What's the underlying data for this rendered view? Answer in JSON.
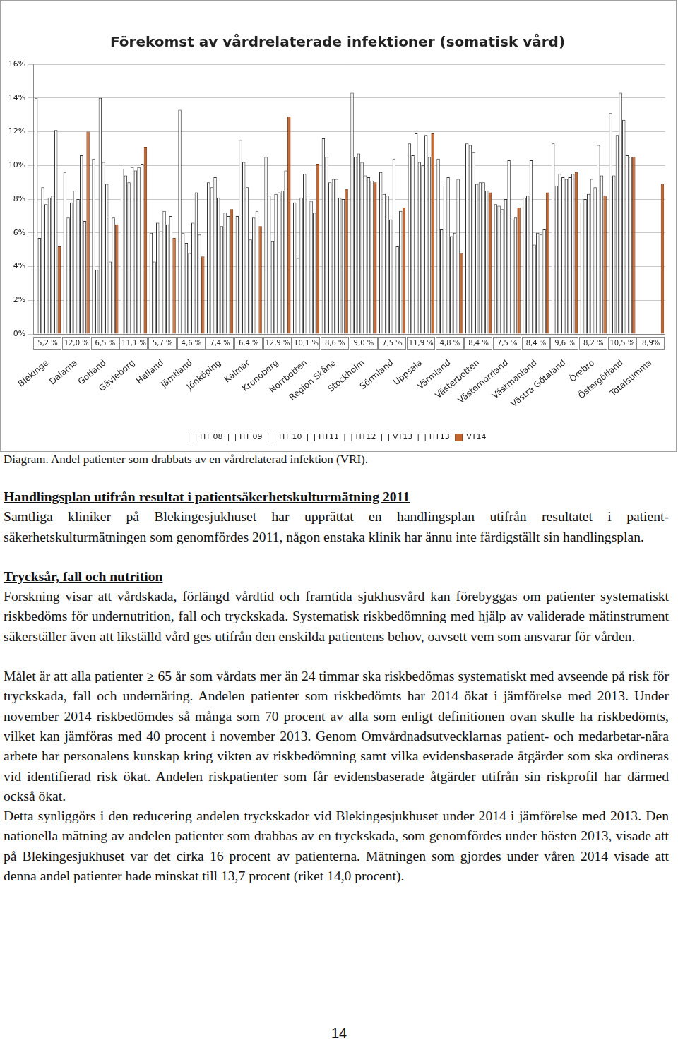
{
  "chart_data": {
    "type": "bar",
    "title": "Förekomst av vårdrelaterade infektioner (somatisk vård)",
    "categories": [
      "Blekinge",
      "Dalarna",
      "Gotland",
      "Gävleborg",
      "Halland",
      "Jämtland",
      "Jönköping",
      "Kalmar",
      "Kronoberg",
      "Norrbotten",
      "Region Skåne",
      "Stockholm",
      "Sörmland",
      "Uppsala",
      "Värmland",
      "Västerbotten",
      "Västernorrland",
      "Västmanland",
      "Västra Götaland",
      "Örebro",
      "Östergötland",
      "Totalsumma"
    ],
    "series": [
      {
        "name": "HT 08",
        "color": "#ffffff",
        "values": [
          14.0,
          9.6,
          10.4,
          9.8,
          6.0,
          13.3,
          9.0,
          7.0,
          10.5,
          7.8,
          11.6,
          14.3,
          9.6,
          11.3,
          10.4,
          11.3,
          7.7,
          8.1,
          11.3,
          7.8,
          13.1,
          null
        ]
      },
      {
        "name": "HT 09",
        "color": "#ffffff",
        "values": [
          5.7,
          6.9,
          3.8,
          9.4,
          4.3,
          6.0,
          8.7,
          11.5,
          8.2,
          4.5,
          10.5,
          10.5,
          8.3,
          10.6,
          6.2,
          11.2,
          7.6,
          8.2,
          8.8,
          8.0,
          9.4,
          null
        ]
      },
      {
        "name": "HT 10",
        "color": "#ffffff",
        "values": [
          8.7,
          7.8,
          14.0,
          9.0,
          6.6,
          5.4,
          9.3,
          10.2,
          5.5,
          8.1,
          9.0,
          10.7,
          8.2,
          11.9,
          8.8,
          10.8,
          7.4,
          10.3,
          9.5,
          8.3,
          11.8,
          null
        ]
      },
      {
        "name": "HT11",
        "color": "#ffffff",
        "values": [
          7.7,
          8.5,
          10.2,
          9.9,
          6.1,
          4.8,
          8.1,
          8.7,
          8.3,
          9.5,
          9.2,
          10.2,
          6.8,
          10.2,
          9.3,
          8.9,
          8.0,
          5.3,
          9.3,
          9.2,
          14.3,
          null
        ]
      },
      {
        "name": "HT12",
        "color": "#ffffff",
        "values": [
          8.1,
          8.0,
          8.9,
          9.7,
          7.3,
          6.6,
          6.4,
          5.6,
          8.4,
          8.2,
          9.2,
          9.4,
          10.4,
          10.0,
          5.8,
          9.0,
          10.3,
          6.0,
          9.2,
          8.7,
          12.7,
          null
        ]
      },
      {
        "name": "VT13",
        "color": "#ffffff",
        "values": [
          8.2,
          10.6,
          4.3,
          9.9,
          6.5,
          8.4,
          7.2,
          6.9,
          8.5,
          7.9,
          8.1,
          9.3,
          5.2,
          11.8,
          6.0,
          9.0,
          6.8,
          5.9,
          9.3,
          11.2,
          10.6,
          null
        ]
      },
      {
        "name": "HT13",
        "color": "#ffffff",
        "values": [
          12.1,
          6.7,
          6.9,
          10.1,
          7.0,
          5.9,
          7.0,
          7.3,
          9.7,
          7.2,
          8.0,
          9.1,
          7.3,
          10.5,
          9.2,
          8.5,
          6.9,
          6.2,
          9.5,
          9.4,
          10.5,
          null
        ]
      },
      {
        "name": "VT14",
        "color": "#c5652e",
        "values": [
          5.2,
          12.0,
          6.5,
          11.1,
          5.7,
          4.6,
          7.4,
          6.4,
          12.9,
          10.1,
          8.6,
          9.0,
          7.5,
          11.9,
          4.8,
          8.4,
          7.5,
          8.4,
          9.6,
          8.2,
          10.5,
          8.9
        ],
        "value_labels": [
          "5,2 %",
          "12,0 %",
          "6,5 %",
          "11,1 %",
          "5,7 %",
          "4,6 %",
          "7,4 %",
          "6,4 %",
          "12,9 %",
          "10,1 %",
          "8,6 %",
          "9,0 %",
          "7,5 %",
          "11,9 %",
          "4,8 %",
          "8,4 %",
          "7,5 %",
          "8,4 %",
          "9,6 %",
          "8,2 %",
          "10,5 %",
          "8,9%"
        ]
      }
    ],
    "ylim": [
      0,
      16
    ],
    "yticks": [
      {
        "value": 0,
        "label": "0%"
      },
      {
        "value": 2,
        "label": "2%"
      },
      {
        "value": 4,
        "label": "4%"
      },
      {
        "value": 6,
        "label": "6%"
      },
      {
        "value": 8,
        "label": "8%"
      },
      {
        "value": 10,
        "label": "10%"
      },
      {
        "value": 12,
        "label": "12%"
      },
      {
        "value": 14,
        "label": "14%"
      },
      {
        "value": 16,
        "label": "16%"
      }
    ],
    "grid": true,
    "legend": "bottom",
    "data_labels": true
  },
  "caption": "Diagram. Andel patienter som drabbats av en vårdrelaterad infektion (VRI).",
  "sections": [
    {
      "heading": "Handlingsplan utifrån resultat i patientsäkerhetskulturmätning 2011",
      "blocks": [
        [
          "Samtliga kliniker på Blekingesjukhuset har upprättat en handlingsplan utifrån resultatet i patient­säkerhetskulturmätningen som genomfördes 2011, någon enstaka klinik har ännu inte färdigställt sin handlingsplan."
        ]
      ]
    },
    {
      "heading": "Trycksår, fall och nutrition",
      "blocks": [
        [
          "Forskning visar att vårdskada, förlängd vårdtid och framtida sjukhusvård kan förebyggas om pa­tienter systematiskt riskbedöms för undernutrition, fall och tryckskada. Systematisk riskbedöm­ning med hjälp av validerade mätinstrument säkerställer även att likställd vård ges utifrån den enskilda patientens behov, oavsett vem som ansvarar för vården."
        ],
        [
          "Målet är att alla patienter ≥ 65 år som vårdats mer än 24 timmar ska riskbedömas systematiskt med avseende på risk för tryckskada, fall och undernäring. Andelen patienter som riskbedömts har 2014 ökat i jämförelse med 2013. Under november 2014 riskbedömdes så många som 70 procent av alla som enligt definitionen ovan skulle ha riskbedömts, vilket kan jämföras med 40 procent i november 2013. Genom Omvårdnadsutvecklarnas patient- och medarbetar-nära arbete har personalens kunskap kring vikten av riskbedömning samt vilka evidensbaserade åtgärder som ska ordineras vid identifierad risk ökat. Andelen riskpatienter som får evidensbaserade åtgärder utifrån sin riskprofil har därmed också ökat.",
          "Detta synliggörs i den reducering andelen tryckskador vid Blekingesjukhuset under 2014 i jämfö­relse med 2013. Den nationella mätning av andelen patienter som drabbas av en tryckskada, som genomfördes under hösten 2013, visade att på Blekingesjukhuset var det cirka 16 procent av pati­enterna. Mätningen som gjordes under våren 2014 visade att denna andel patienter hade minskat till 13,7 procent (riket 14,0 procent)."
        ]
      ]
    }
  ],
  "page_number": 14
}
